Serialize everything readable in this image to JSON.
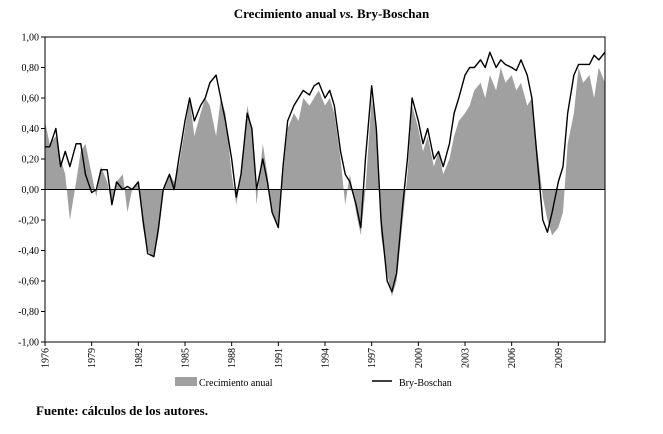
{
  "title": {
    "main": "Crecimiento anual ",
    "vs": "vs.",
    "rest": " Bry-Boschan"
  },
  "source": "Fuente: cálculos de los autores.",
  "chart_data": {
    "type": "area",
    "title": "Crecimiento anual vs. Bry-Boschan",
    "xlabel": "",
    "ylabel": "",
    "x_range": [
      1976.0,
      2012.0
    ],
    "ylim": [
      -1.0,
      1.0
    ],
    "y_ticks": [
      "1,00",
      "0,80",
      "0,60",
      "0,40",
      "0,20",
      "0,00",
      "-0,20",
      "-0,40",
      "-0,60",
      "-0,80",
      "-1,00"
    ],
    "x_ticks": [
      "1976",
      "1979",
      "1982",
      "1985",
      "1988",
      "1991",
      "1994",
      "1997",
      "2000",
      "2003",
      "2006",
      "2009"
    ],
    "grid": false,
    "legend_position": "bottom",
    "colors": {
      "area": "#a0a0a0",
      "line": "#000000",
      "axis": "#000000"
    },
    "series": [
      {
        "name": "Crecimiento anual",
        "style": "area",
        "x": [
          1976.0,
          1976.3,
          1976.7,
          1977.0,
          1977.3,
          1977.6,
          1978.0,
          1978.3,
          1978.6,
          1979.0,
          1979.3,
          1979.6,
          1980.0,
          1980.3,
          1980.6,
          1981.0,
          1981.3,
          1981.6,
          1982.0,
          1982.3,
          1982.6,
          1983.0,
          1983.3,
          1983.6,
          1984.0,
          1984.3,
          1984.6,
          1985.0,
          1985.3,
          1985.6,
          1986.0,
          1986.3,
          1986.6,
          1987.0,
          1987.3,
          1987.6,
          1988.0,
          1988.3,
          1988.6,
          1989.0,
          1989.3,
          1989.6,
          1990.0,
          1990.3,
          1990.6,
          1991.0,
          1991.3,
          1991.6,
          1992.0,
          1992.3,
          1992.6,
          1993.0,
          1993.3,
          1993.6,
          1994.0,
          1994.3,
          1994.6,
          1995.0,
          1995.3,
          1995.6,
          1996.0,
          1996.3,
          1996.6,
          1997.0,
          1997.3,
          1997.6,
          1998.0,
          1998.3,
          1998.6,
          1999.0,
          1999.3,
          1999.6,
          2000.0,
          2000.3,
          2000.6,
          2001.0,
          2001.3,
          2001.6,
          2002.0,
          2002.3,
          2002.6,
          2003.0,
          2003.3,
          2003.6,
          2004.0,
          2004.3,
          2004.6,
          2005.0,
          2005.3,
          2005.6,
          2006.0,
          2006.3,
          2006.6,
          2007.0,
          2007.3,
          2007.6,
          2008.0,
          2008.3,
          2008.6,
          2009.0,
          2009.3,
          2009.6,
          2010.0,
          2010.3,
          2010.6,
          2011.0,
          2011.3,
          2011.6,
          2012.0
        ],
        "values": [
          0.45,
          0.3,
          0.35,
          0.2,
          0.1,
          -0.2,
          0.05,
          0.25,
          0.3,
          0.1,
          -0.05,
          0.15,
          0.05,
          -0.1,
          0.05,
          0.1,
          -0.15,
          0.0,
          0.05,
          -0.25,
          -0.4,
          -0.45,
          -0.3,
          0.0,
          0.1,
          0.05,
          0.15,
          0.4,
          0.6,
          0.35,
          0.5,
          0.6,
          0.55,
          0.35,
          0.6,
          0.5,
          0.1,
          -0.1,
          0.1,
          0.55,
          0.4,
          -0.1,
          0.3,
          0.1,
          -0.15,
          -0.25,
          0.1,
          0.4,
          0.5,
          0.45,
          0.6,
          0.55,
          0.6,
          0.65,
          0.55,
          0.6,
          0.5,
          0.2,
          -0.1,
          0.1,
          -0.15,
          -0.3,
          0.0,
          0.6,
          0.4,
          -0.3,
          -0.55,
          -0.7,
          -0.6,
          -0.2,
          0.1,
          0.55,
          0.4,
          0.25,
          0.35,
          0.15,
          0.25,
          0.1,
          0.2,
          0.35,
          0.45,
          0.5,
          0.55,
          0.65,
          0.7,
          0.6,
          0.75,
          0.65,
          0.8,
          0.7,
          0.75,
          0.65,
          0.7,
          0.55,
          0.6,
          0.3,
          -0.05,
          -0.2,
          -0.3,
          -0.25,
          -0.15,
          0.3,
          0.5,
          0.8,
          0.7,
          0.75,
          0.6,
          0.8,
          0.7
        ]
      },
      {
        "name": "Bry-Boschan",
        "style": "line",
        "x": [
          1976.0,
          1976.3,
          1976.7,
          1977.0,
          1977.3,
          1977.6,
          1978.0,
          1978.3,
          1978.6,
          1979.0,
          1979.3,
          1979.6,
          1980.0,
          1980.3,
          1980.6,
          1981.0,
          1981.3,
          1981.6,
          1982.0,
          1982.3,
          1982.6,
          1983.0,
          1983.3,
          1983.6,
          1984.0,
          1984.3,
          1984.6,
          1985.0,
          1985.3,
          1985.6,
          1986.0,
          1986.3,
          1986.6,
          1987.0,
          1987.3,
          1987.6,
          1988.0,
          1988.3,
          1988.6,
          1989.0,
          1989.3,
          1989.6,
          1990.0,
          1990.3,
          1990.6,
          1991.0,
          1991.3,
          1991.6,
          1992.0,
          1992.3,
          1992.6,
          1993.0,
          1993.3,
          1993.6,
          1994.0,
          1994.3,
          1994.6,
          1995.0,
          1995.3,
          1995.6,
          1996.0,
          1996.3,
          1996.6,
          1997.0,
          1997.3,
          1997.6,
          1998.0,
          1998.3,
          1998.6,
          1999.0,
          1999.3,
          1999.6,
          2000.0,
          2000.3,
          2000.6,
          2001.0,
          2001.3,
          2001.6,
          2002.0,
          2002.3,
          2002.6,
          2003.0,
          2003.3,
          2003.6,
          2004.0,
          2004.3,
          2004.6,
          2005.0,
          2005.3,
          2005.6,
          2006.0,
          2006.3,
          2006.6,
          2007.0,
          2007.3,
          2007.6,
          2008.0,
          2008.3,
          2008.6,
          2009.0,
          2009.3,
          2009.6,
          2010.0,
          2010.3,
          2010.6,
          2011.0,
          2011.3,
          2011.6,
          2012.0
        ],
        "values": [
          0.28,
          0.28,
          0.4,
          0.15,
          0.25,
          0.15,
          0.3,
          0.3,
          0.1,
          -0.02,
          0.0,
          0.13,
          0.13,
          -0.1,
          0.05,
          0.0,
          0.02,
          0.0,
          0.05,
          -0.2,
          -0.42,
          -0.44,
          -0.25,
          0.0,
          0.1,
          0.0,
          0.2,
          0.45,
          0.6,
          0.45,
          0.55,
          0.6,
          0.7,
          0.75,
          0.6,
          0.45,
          0.2,
          -0.05,
          0.1,
          0.5,
          0.4,
          0.0,
          0.2,
          0.05,
          -0.15,
          -0.25,
          0.15,
          0.45,
          0.55,
          0.6,
          0.65,
          0.62,
          0.68,
          0.7,
          0.6,
          0.65,
          0.55,
          0.25,
          0.1,
          0.05,
          -0.1,
          -0.25,
          0.2,
          0.68,
          0.4,
          -0.2,
          -0.6,
          -0.67,
          -0.55,
          -0.1,
          0.2,
          0.6,
          0.45,
          0.3,
          0.4,
          0.2,
          0.25,
          0.15,
          0.3,
          0.5,
          0.6,
          0.75,
          0.8,
          0.8,
          0.85,
          0.8,
          0.9,
          0.8,
          0.85,
          0.82,
          0.8,
          0.78,
          0.85,
          0.75,
          0.6,
          0.25,
          -0.2,
          -0.28,
          -0.15,
          0.05,
          0.15,
          0.5,
          0.75,
          0.82,
          0.82,
          0.82,
          0.88,
          0.85,
          0.9
        ]
      }
    ]
  }
}
